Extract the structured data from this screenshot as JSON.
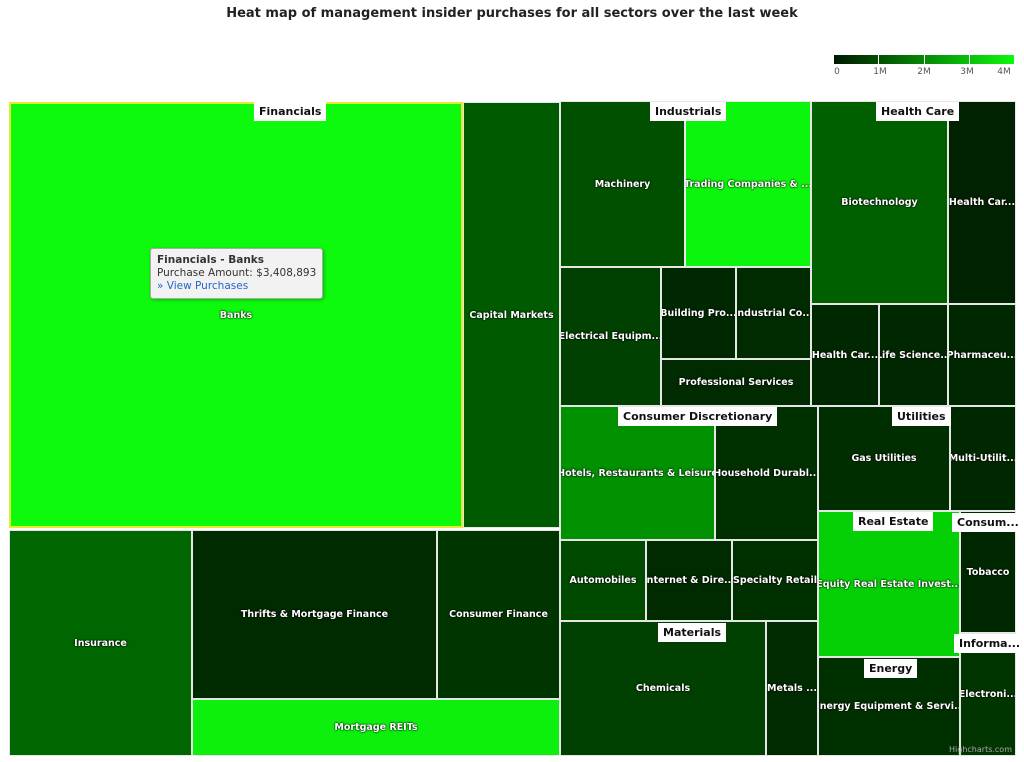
{
  "chart_data": {
    "type": "treemap",
    "title": "Heat map of management insider purchases for all sectors over the last week",
    "color_axis": {
      "min": 0,
      "max": 4000000,
      "ticks": [
        "0",
        "1M",
        "2M",
        "3M",
        "4M"
      ],
      "min_color": "#001800",
      "max_color": "#0df80d"
    },
    "sectors": [
      {
        "name": "Financials",
        "industries": [
          {
            "name": "Banks",
            "color": "#0dfa0d"
          },
          {
            "name": "Capital Markets",
            "color": "#005a00"
          },
          {
            "name": "Insurance",
            "color": "#006600"
          },
          {
            "name": "Thrifts & Mortgage Finance",
            "color": "#002a00"
          },
          {
            "name": "Consumer Finance",
            "color": "#003500"
          },
          {
            "name": "Mortgage REITs",
            "color": "#0df00d"
          }
        ]
      },
      {
        "name": "Industrials",
        "industries": [
          {
            "name": "Machinery",
            "color": "#005000"
          },
          {
            "name": "Trading Companies & ...",
            "color": "#0cf50c"
          },
          {
            "name": "Electrical Equipm...",
            "color": "#004000"
          },
          {
            "name": "Building Pro...",
            "color": "#002800"
          },
          {
            "name": "Industrial Co...",
            "color": "#002a00"
          },
          {
            "name": "Professional Services",
            "color": "#002a00"
          }
        ]
      },
      {
        "name": "Health Care",
        "industries": [
          {
            "name": "Biotechnology",
            "color": "#006000"
          },
          {
            "name": "Health Car...",
            "color": "#002200"
          },
          {
            "name": "Health Car...",
            "color": "#002800"
          },
          {
            "name": "Life Science...",
            "color": "#002800"
          },
          {
            "name": "Pharmaceu...",
            "color": "#002800"
          }
        ]
      },
      {
        "name": "Consumer Discretionary",
        "industries": [
          {
            "name": "Hotels, Restaurants & Leisure",
            "color": "#009000"
          },
          {
            "name": "Household Durabl...",
            "color": "#003000"
          },
          {
            "name": "Automobiles",
            "color": "#004a00"
          },
          {
            "name": "Internet & Dire...",
            "color": "#002a00"
          },
          {
            "name": "Specialty Retail",
            "color": "#003000"
          }
        ]
      },
      {
        "name": "Materials",
        "industries": [
          {
            "name": "Chemicals",
            "color": "#004000"
          },
          {
            "name": "Metals ...",
            "color": "#002a00"
          }
        ]
      },
      {
        "name": "Utilities",
        "industries": [
          {
            "name": "Gas Utilities",
            "color": "#002e00"
          },
          {
            "name": "Multi-Utilit...",
            "color": "#002800"
          }
        ]
      },
      {
        "name": "Real Estate",
        "industries": [
          {
            "name": "Equity Real Estate Invest...",
            "color": "#05d005"
          }
        ]
      },
      {
        "name": "Consum...",
        "industries": [
          {
            "name": "Tobacco",
            "color": "#002800"
          }
        ]
      },
      {
        "name": "Informa...",
        "industries": [
          {
            "name": "Electroni...",
            "color": "#003500"
          }
        ]
      },
      {
        "name": "Energy",
        "industries": [
          {
            "name": "Energy Equipment & Servi...",
            "color": "#003000"
          }
        ]
      }
    ]
  },
  "tooltip": {
    "title": "Financials - Banks",
    "label": "Purchase Amount: $3,408,893",
    "link": "» View Purchases"
  },
  "credit": "Highcharts.com"
}
